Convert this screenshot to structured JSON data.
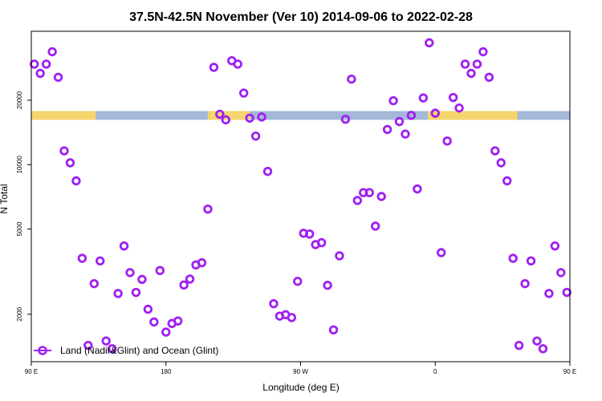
{
  "chart_data": {
    "type": "scatter",
    "title": "37.5N-42.5N November (Ver 10)   2014-09-06 to 2022-02-28",
    "xlabel": "Longitude (deg E)",
    "ylabel": "N Total",
    "xlim": [
      90,
      450
    ],
    "ylim": [
      1200,
      42000
    ],
    "yscale": "log",
    "x_ticks": [
      {
        "value": 90,
        "label": "90 E"
      },
      {
        "value": 180,
        "label": "180"
      },
      {
        "value": 270,
        "label": "90 W"
      },
      {
        "value": 360,
        "label": "0"
      },
      {
        "value": 450,
        "label": "90 E"
      }
    ],
    "y_ticks": [
      {
        "value": 2000,
        "label": "2000"
      },
      {
        "value": 5000,
        "label": "5000"
      },
      {
        "value": 10000,
        "label": "10000"
      },
      {
        "value": 20000,
        "label": "20000"
      }
    ],
    "series": [
      {
        "name": "Land (Nadir&Glint) and Ocean (Glint)",
        "color": "#a020f0",
        "marker": "circle-open",
        "points": [
          [
            92,
            29500
          ],
          [
            96,
            26700
          ],
          [
            100,
            29500
          ],
          [
            104,
            33700
          ],
          [
            108,
            25600
          ],
          [
            112,
            11600
          ],
          [
            116,
            10200
          ],
          [
            120,
            8400
          ],
          [
            124,
            3650
          ],
          [
            128,
            1430
          ],
          [
            132,
            2780
          ],
          [
            136,
            3550
          ],
          [
            140,
            1500
          ],
          [
            144,
            1380
          ],
          [
            148,
            2500
          ],
          [
            152,
            4170
          ],
          [
            156,
            3130
          ],
          [
            160,
            2530
          ],
          [
            164,
            2910
          ],
          [
            168,
            2110
          ],
          [
            172,
            1840
          ],
          [
            176,
            3200
          ],
          [
            180,
            1650
          ],
          [
            184,
            1810
          ],
          [
            188,
            1860
          ],
          [
            192,
            2740
          ],
          [
            196,
            2920
          ],
          [
            200,
            3400
          ],
          [
            204,
            3480
          ],
          [
            208,
            6200
          ],
          [
            212,
            28500
          ],
          [
            216,
            17200
          ],
          [
            220,
            16200
          ],
          [
            224,
            30600
          ],
          [
            228,
            29500
          ],
          [
            232,
            21600
          ],
          [
            236,
            16500
          ],
          [
            240,
            13600
          ],
          [
            244,
            16700
          ],
          [
            248,
            9300
          ],
          [
            252,
            2240
          ],
          [
            256,
            1960
          ],
          [
            260,
            1990
          ],
          [
            264,
            1930
          ],
          [
            268,
            2850
          ],
          [
            272,
            4780
          ],
          [
            276,
            4740
          ],
          [
            280,
            4230
          ],
          [
            284,
            4320
          ],
          [
            288,
            2730
          ],
          [
            292,
            1690
          ],
          [
            296,
            3750
          ],
          [
            300,
            16300
          ],
          [
            304,
            25100
          ],
          [
            308,
            6800
          ],
          [
            312,
            7400
          ],
          [
            316,
            7400
          ],
          [
            320,
            5160
          ],
          [
            324,
            7100
          ],
          [
            328,
            14600
          ],
          [
            332,
            19900
          ],
          [
            336,
            15900
          ],
          [
            340,
            13900
          ],
          [
            344,
            17000
          ],
          [
            348,
            7700
          ],
          [
            352,
            20500
          ],
          [
            356,
            37100
          ],
          [
            360,
            17400
          ],
          [
            364,
            3880
          ],
          [
            368,
            12900
          ],
          [
            372,
            20600
          ],
          [
            376,
            18400
          ],
          [
            380,
            29500
          ],
          [
            384,
            26700
          ],
          [
            388,
            29500
          ],
          [
            392,
            33700
          ],
          [
            396,
            25600
          ],
          [
            400,
            11600
          ],
          [
            404,
            10200
          ],
          [
            408,
            8400
          ],
          [
            412,
            3650
          ],
          [
            416,
            1430
          ],
          [
            420,
            2780
          ],
          [
            424,
            3550
          ],
          [
            428,
            1500
          ],
          [
            432,
            1380
          ],
          [
            436,
            2500
          ],
          [
            440,
            4170
          ],
          [
            444,
            3130
          ],
          [
            448,
            2530
          ]
        ]
      }
    ],
    "surface_band": {
      "y_range": [
        16200,
        17800
      ],
      "description": "land/ocean mask strip",
      "land_color": "#f5d56e",
      "ocean_color": "#a3b8d8",
      "land_intervals": [
        [
          90,
          133
        ],
        [
          208,
          236
        ],
        [
          355,
          415
        ]
      ]
    },
    "legend": {
      "position": "bottom-left",
      "entries": [
        "Land (Nadir&Glint) and Ocean (Glint)"
      ]
    }
  }
}
